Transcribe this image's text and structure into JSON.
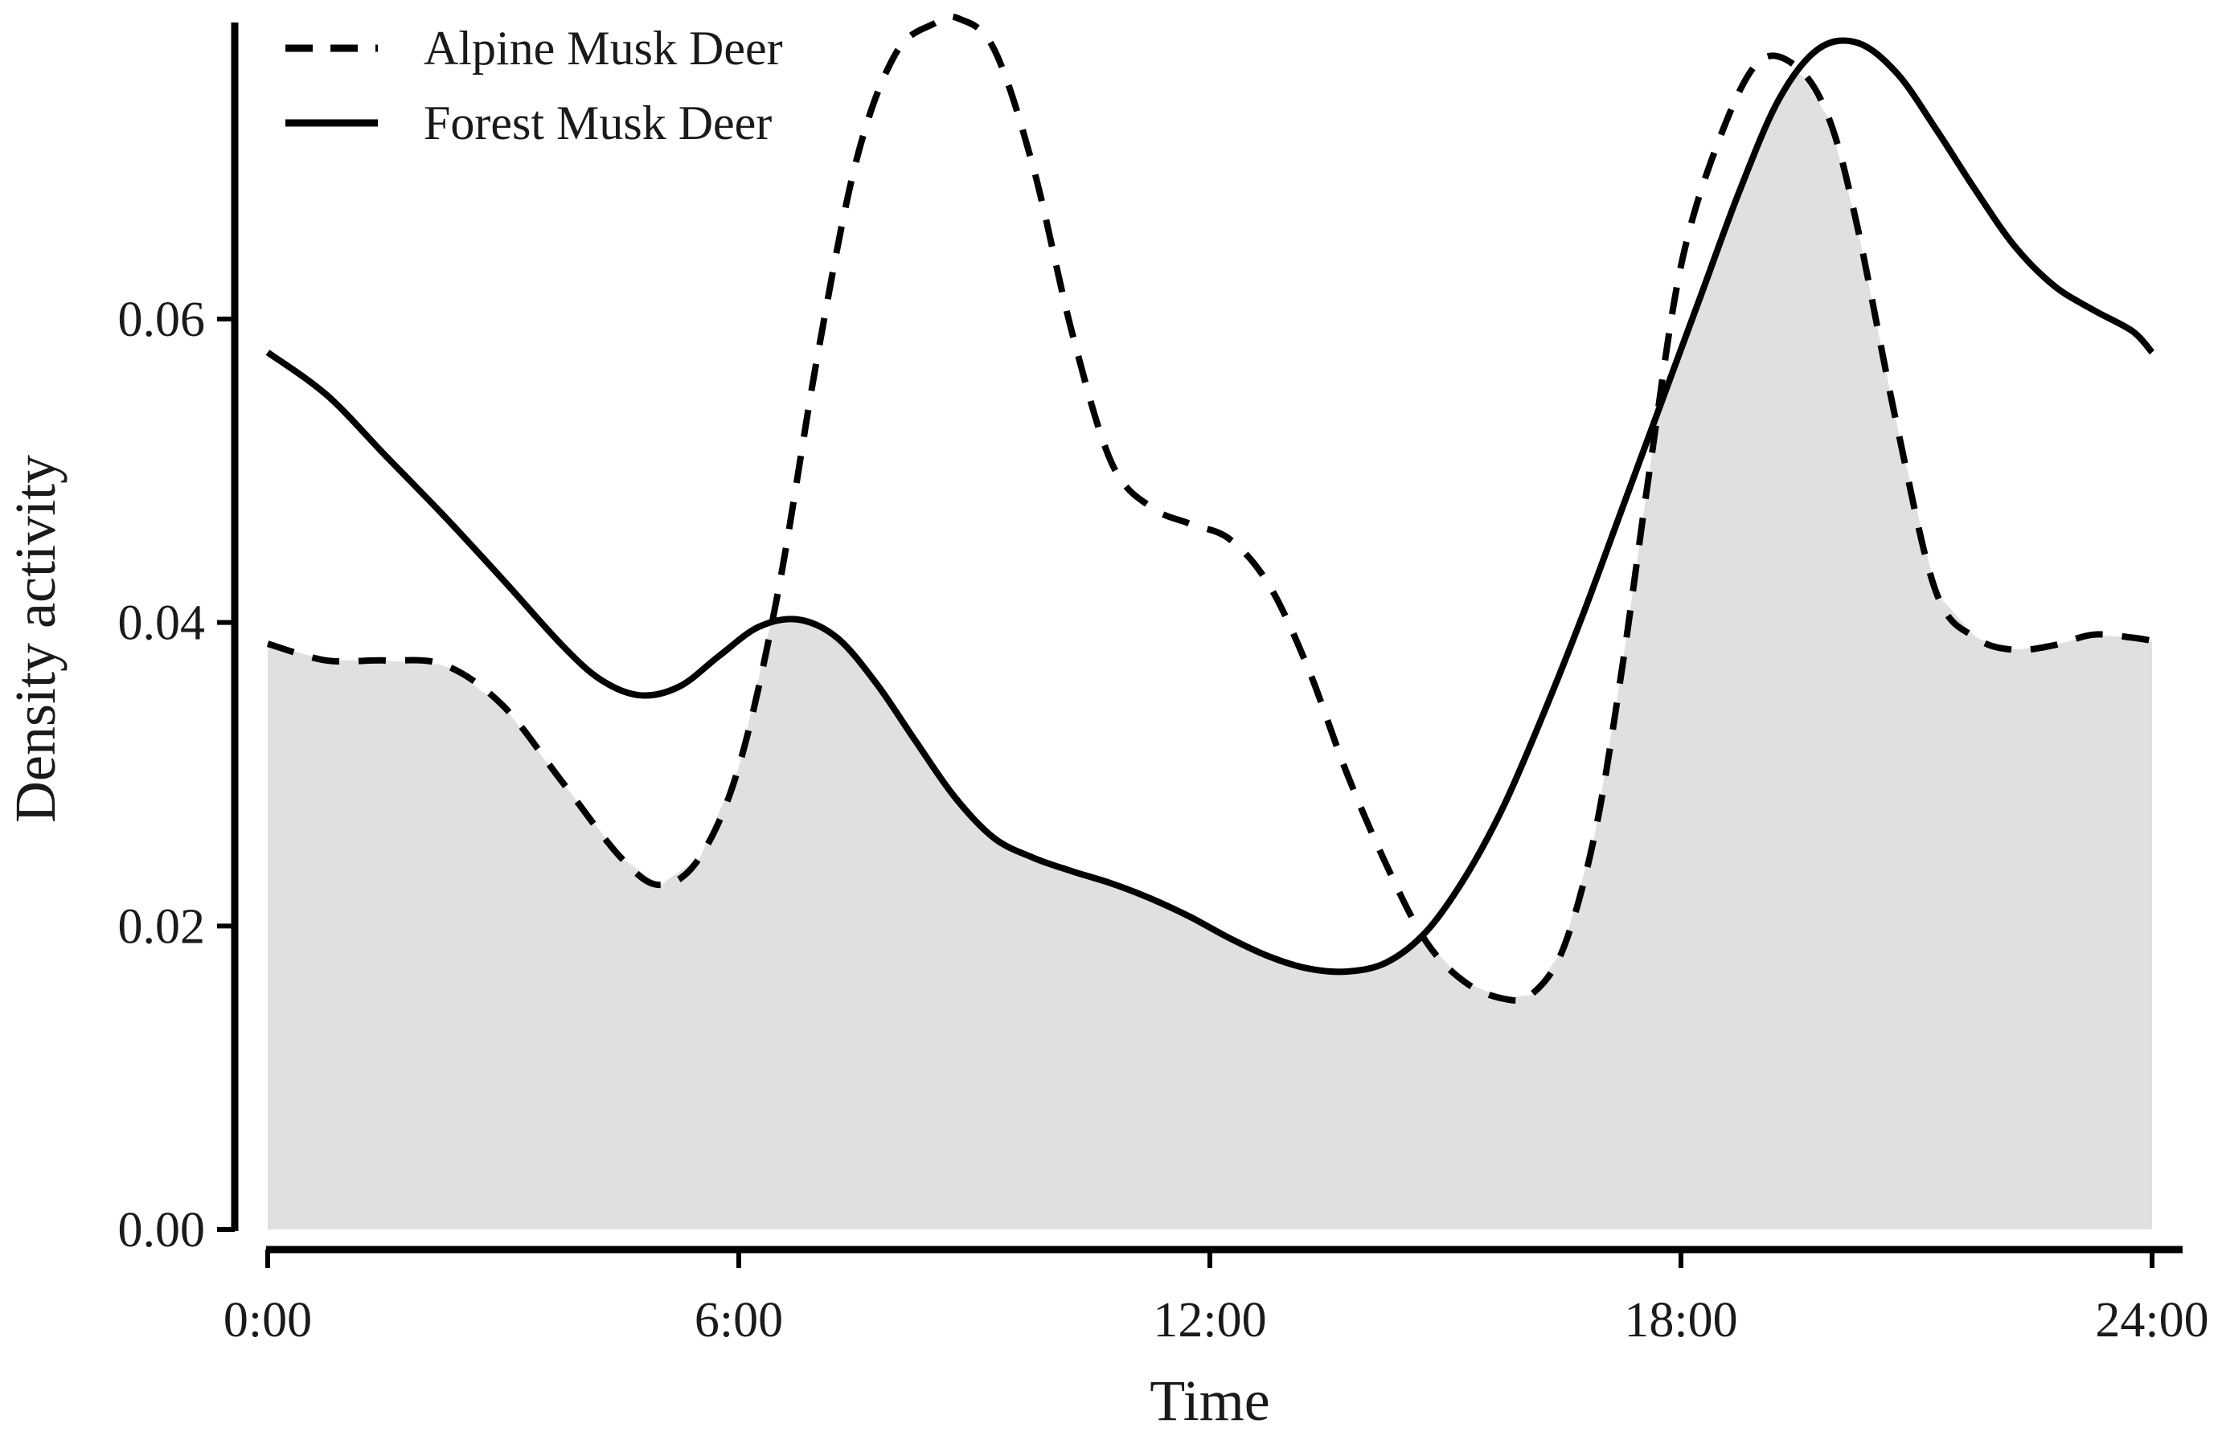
{
  "chart_data": {
    "type": "line",
    "title": "",
    "xlabel": "Time",
    "ylabel": "Density activity",
    "xlim": [
      0,
      24
    ],
    "ylim": [
      0,
      0.08
    ],
    "x_ticks": [
      {
        "value": 0,
        "label": "0:00"
      },
      {
        "value": 6,
        "label": "6:00"
      },
      {
        "value": 12,
        "label": "12:00"
      },
      {
        "value": 18,
        "label": "18:00"
      },
      {
        "value": 24,
        "label": "24:00"
      }
    ],
    "y_ticks": [
      {
        "value": 0.0,
        "label": "0.00"
      },
      {
        "value": 0.02,
        "label": "0.02"
      },
      {
        "value": 0.04,
        "label": "0.04"
      },
      {
        "value": 0.06,
        "label": "0.06"
      }
    ],
    "grid": false,
    "legend_position": "top-left",
    "shaded_overlap": {
      "description_color": "#e0e0e0"
    },
    "series": [
      {
        "name": "Alpine Musk Deer",
        "line_style": "dashed",
        "color": "#000000",
        "x": [
          0,
          0.75,
          1.5,
          2.25,
          3,
          3.75,
          4.5,
          5,
          5.5,
          6,
          6.5,
          7,
          7.5,
          8,
          8.5,
          8.8,
          9.25,
          9.75,
          10.25,
          10.75,
          11.25,
          11.75,
          12.25,
          12.75,
          13.25,
          13.75,
          14.25,
          14.75,
          15.25,
          15.75,
          16.1,
          16.5,
          16.9,
          17.25,
          17.6,
          18,
          18.5,
          19,
          19.5,
          19.9,
          20.25,
          20.75,
          21.25,
          21.75,
          22.25,
          22.75,
          23.25,
          23.75,
          24
        ],
        "y": [
          0.0386,
          0.0375,
          0.0375,
          0.0372,
          0.0345,
          0.0295,
          0.0245,
          0.0227,
          0.0245,
          0.0305,
          0.042,
          0.0575,
          0.0705,
          0.0775,
          0.0795,
          0.0798,
          0.0778,
          0.07,
          0.059,
          0.0505,
          0.0476,
          0.0465,
          0.0455,
          0.0425,
          0.037,
          0.03,
          0.024,
          0.019,
          0.0163,
          0.0152,
          0.0155,
          0.0185,
          0.026,
          0.037,
          0.05,
          0.0635,
          0.072,
          0.077,
          0.0765,
          0.073,
          0.066,
          0.053,
          0.042,
          0.039,
          0.0382,
          0.0385,
          0.0392,
          0.039,
          0.0388
        ]
      },
      {
        "name": "Forest Musk Deer",
        "line_style": "solid",
        "color": "#000000",
        "x": [
          0,
          0.75,
          1.5,
          2.25,
          3,
          3.75,
          4.25,
          4.75,
          5.25,
          5.75,
          6.25,
          6.75,
          7.25,
          7.75,
          8.25,
          8.75,
          9.25,
          9.75,
          10.25,
          10.75,
          11.25,
          11.75,
          12.25,
          12.75,
          13.25,
          13.75,
          14.25,
          14.75,
          15.25,
          15.75,
          16.25,
          16.75,
          17.25,
          17.75,
          18.25,
          18.75,
          19.25,
          19.75,
          20.25,
          20.75,
          21.25,
          21.75,
          22.25,
          22.75,
          23.25,
          23.75,
          24
        ],
        "y": [
          0.0578,
          0.055,
          0.051,
          0.047,
          0.0428,
          0.0385,
          0.0362,
          0.0352,
          0.0358,
          0.0378,
          0.0397,
          0.0402,
          0.039,
          0.036,
          0.0322,
          0.0285,
          0.0258,
          0.0245,
          0.0236,
          0.0228,
          0.0218,
          0.0206,
          0.0192,
          0.018,
          0.0172,
          0.017,
          0.0176,
          0.0196,
          0.0232,
          0.028,
          0.034,
          0.0405,
          0.0475,
          0.0545,
          0.0615,
          0.0685,
          0.0745,
          0.0778,
          0.0782,
          0.0762,
          0.0725,
          0.0685,
          0.0648,
          0.0622,
          0.0606,
          0.0592,
          0.0578
        ]
      }
    ]
  }
}
